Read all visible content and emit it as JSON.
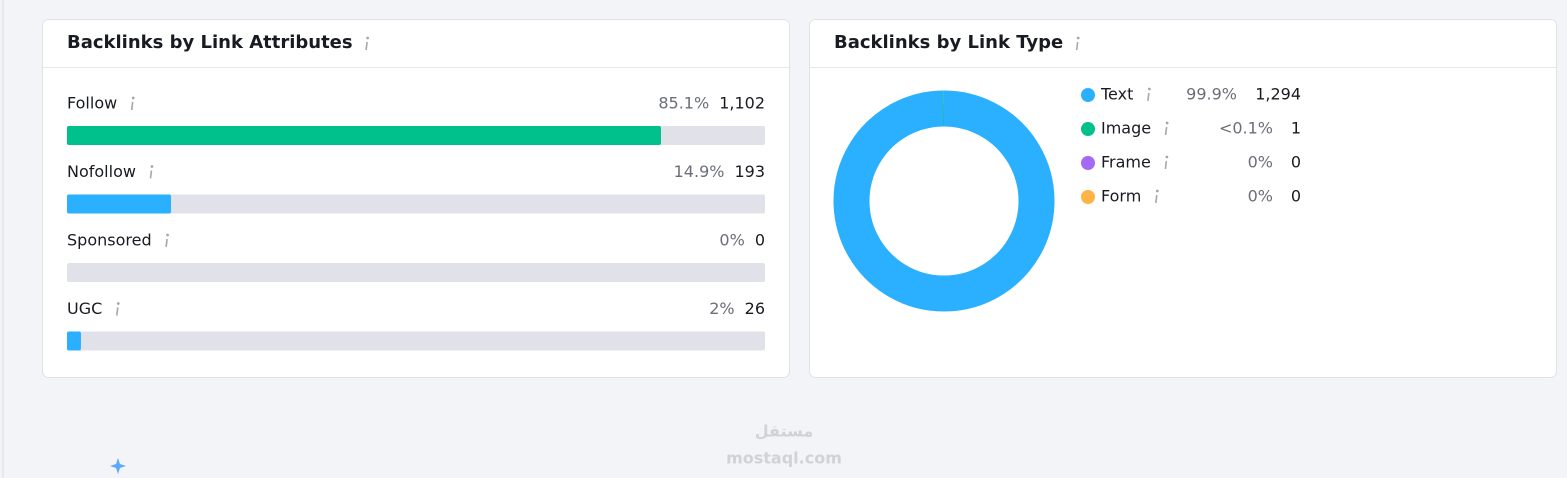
{
  "attributes_panel": {
    "title": "Backlinks by Link Attributes",
    "rows": [
      {
        "label": "Follow",
        "value": 85.1,
        "value_label": "85.1%",
        "count": "1,102",
        "color": "#00c08b",
        "count_color": "#006dca"
      },
      {
        "label": "Nofollow",
        "value": 14.9,
        "value_label": "14.9%",
        "count": "193",
        "color": "#2bb0ff",
        "count_color": "#006dca"
      },
      {
        "label": "Sponsored",
        "value": 0,
        "value_label": "0%",
        "count": "0",
        "color": "#2bb0ff",
        "count_color": "#006dca"
      },
      {
        "label": "UGC",
        "value": 2,
        "value_label": "2%",
        "count": "26",
        "color": "#2bb0ff",
        "count_color": "#006dca"
      }
    ]
  },
  "type_panel": {
    "title": "Backlinks by Link Type",
    "legend": [
      {
        "label": "Text",
        "value": 99.9,
        "value_label": "99.9%",
        "count": "1,294",
        "color": "#2bb0ff",
        "count_color": "#006dca"
      },
      {
        "label": "Image",
        "value": 0.1,
        "value_label": "<0.1%",
        "count": "1",
        "color": "#00c08b",
        "count_color": "#006dca"
      },
      {
        "label": "Frame",
        "value": 0,
        "value_label": "0%",
        "count": "0",
        "color": "#a56af5",
        "count_color": "#6c6e79"
      },
      {
        "label": "Form",
        "value": 0,
        "value_label": "0%",
        "count": "0",
        "color": "#ffb347",
        "count_color": "#6c6e79"
      }
    ]
  },
  "watermark": {
    "arabic": "مستقل",
    "latin": "mostaql.com"
  }
}
